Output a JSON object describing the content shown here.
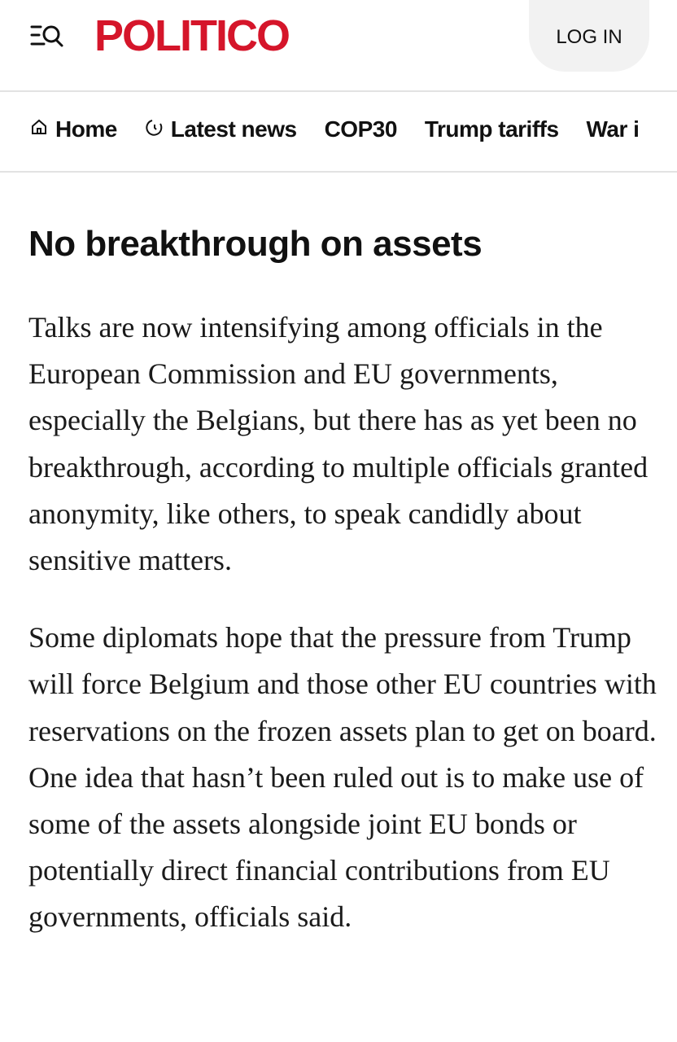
{
  "header": {
    "menu_icon": "menu-search-icon",
    "logo": "POLITICO",
    "login_label": "LOG IN",
    "brand_color": "#d5152a"
  },
  "nav": {
    "items": [
      {
        "label": "Home",
        "icon": "home-icon"
      },
      {
        "label": "Latest news",
        "icon": "clock-icon"
      },
      {
        "label": "COP30"
      },
      {
        "label": "Trump tariffs"
      },
      {
        "label": "War i"
      }
    ]
  },
  "article": {
    "heading": "No breakthrough on assets",
    "paragraphs": [
      "Talks are now intensifying among officials in the European Commission and EU governments, especially the Belgians, but there has as yet been no breakthrough, according to multiple officials granted anonymity, like others, to speak candidly about sensitive matters.",
      "Some diplomats hope that the pressure from Trump will force Belgium and those other EU countries with reservations on the frozen assets plan to get on board. One idea that hasn’t been ruled out is to make use of some of the assets alongside joint EU bonds or potentially direct financial contributions from EU governments, officials said."
    ]
  }
}
